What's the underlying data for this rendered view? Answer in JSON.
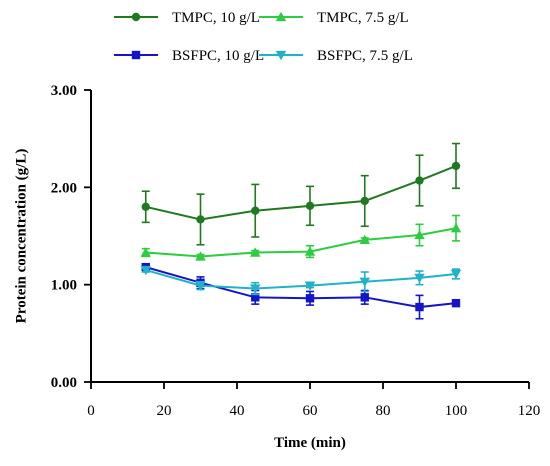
{
  "chart_data": {
    "type": "line",
    "title": "",
    "xlabel": "Time (min)",
    "ylabel": "Protein concentration (g/L)",
    "xlim": [
      0,
      120
    ],
    "ylim": [
      0.0,
      3.0
    ],
    "xticks": [
      0,
      20,
      40,
      60,
      80,
      100,
      120
    ],
    "xtick_labels": [
      "0",
      "20",
      "40",
      "60",
      "80",
      "100",
      "120"
    ],
    "yticks": [
      0.0,
      1.0,
      2.0,
      3.0
    ],
    "ytick_labels": [
      "0.00",
      "1.00",
      "2.00",
      "3.00"
    ],
    "grid": false,
    "legend_position": "top",
    "series": [
      {
        "name": "TMPC, 10 g/L",
        "color": "#1f7a1f",
        "marker": "circle",
        "x": [
          15,
          30,
          45,
          60,
          75,
          90,
          100
        ],
        "values": [
          1.8,
          1.67,
          1.76,
          1.81,
          1.86,
          2.07,
          2.22
        ],
        "errors": [
          0.16,
          0.26,
          0.27,
          0.2,
          0.26,
          0.26,
          0.23
        ]
      },
      {
        "name": "TMPC, 7.5 g/L",
        "color": "#2ecc40",
        "marker": "triangle-up",
        "x": [
          15,
          30,
          45,
          60,
          75,
          90,
          100
        ],
        "values": [
          1.33,
          1.29,
          1.33,
          1.34,
          1.46,
          1.51,
          1.58
        ],
        "errors": [
          0.04,
          0.02,
          0.02,
          0.06,
          0.02,
          0.11,
          0.13
        ]
      },
      {
        "name": "BSFPC, 10 g/L",
        "color": "#1515c8",
        "marker": "square",
        "x": [
          15,
          30,
          45,
          60,
          75,
          90,
          100
        ],
        "values": [
          1.18,
          1.02,
          0.87,
          0.86,
          0.87,
          0.77,
          0.81
        ],
        "errors": [
          0.02,
          0.06,
          0.07,
          0.07,
          0.07,
          0.12,
          0.02
        ]
      },
      {
        "name": "BSFPC, 7.5 g/L",
        "color": "#20b2c8",
        "marker": "triangle-down",
        "x": [
          15,
          30,
          45,
          60,
          75,
          90,
          100
        ],
        "values": [
          1.15,
          0.99,
          0.96,
          0.99,
          1.03,
          1.07,
          1.11
        ],
        "errors": [
          0.02,
          0.04,
          0.06,
          0.02,
          0.1,
          0.07,
          0.05
        ]
      }
    ]
  }
}
